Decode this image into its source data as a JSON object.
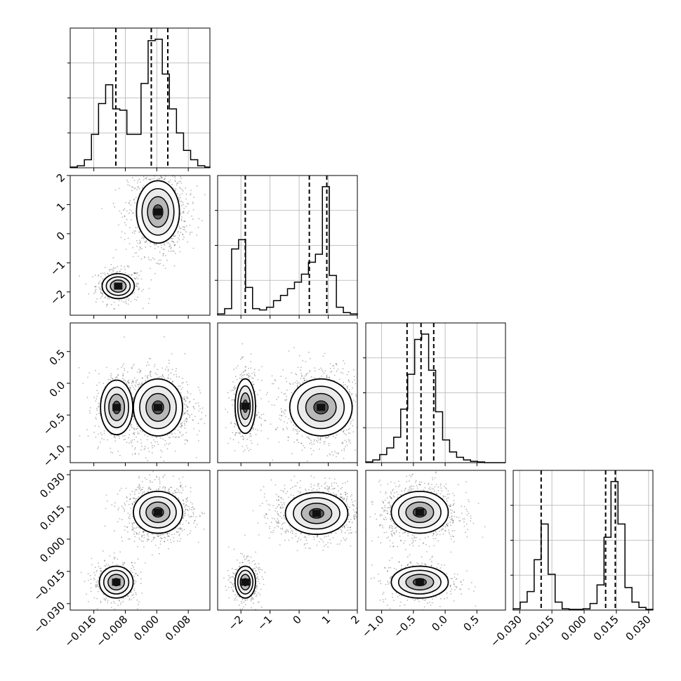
{
  "chart_data": {
    "type": "corner",
    "params": [
      {
        "range": [
          -0.022,
          0.0135
        ],
        "ticks": [
          -0.016,
          -0.008,
          0.0,
          0.008
        ],
        "tick_labels": [
          "−0.016",
          "−0.008",
          "0.000",
          "0.008"
        ],
        "quantiles": [
          -0.0104,
          -0.0014,
          0.0028
        ]
      },
      {
        "range": [
          -2.8,
          2.0
        ],
        "ticks": [
          -2,
          -1,
          0,
          1,
          2
        ],
        "tick_labels": [
          "−2",
          "−1",
          "0",
          "1",
          "2"
        ],
        "quantiles": [
          -1.85,
          0.35,
          0.95
        ]
      },
      {
        "range": [
          -1.25,
          0.95
        ],
        "ticks": [
          -1.0,
          -0.5,
          0.0,
          0.5
        ],
        "tick_labels": [
          "−1.0",
          "−0.5",
          "0.0",
          "0.5"
        ],
        "quantiles": [
          -0.6,
          -0.38,
          -0.18
        ]
      },
      {
        "range": [
          -0.033,
          0.032
        ],
        "ticks": [
          -0.03,
          -0.015,
          0.0,
          0.015,
          0.03
        ],
        "tick_labels": [
          "−0.030",
          "−0.015",
          "0.000",
          "0.015",
          "0.030"
        ],
        "quantiles": [
          -0.02,
          0.01,
          0.0145
        ]
      }
    ],
    "diagonal_histograms": [
      {
        "bin_edges": [
          -0.022,
          -0.0202,
          -0.0184,
          -0.0166,
          -0.0148,
          -0.013,
          -0.0112,
          -0.0094,
          -0.0076,
          -0.0058,
          -0.004,
          -0.0022,
          -0.0004,
          0.0014,
          0.0032,
          0.005,
          0.0068,
          0.0086,
          0.0104,
          0.0122,
          0.0135
        ],
        "counts": [
          0.5,
          1.5,
          6,
          25,
          48,
          62,
          44,
          43,
          25,
          25,
          63,
          95,
          96,
          70,
          44,
          26,
          13,
          6,
          1.5,
          0.5
        ]
      },
      {
        "bin_edges": [
          -2.8,
          -2.56,
          -2.32,
          -2.08,
          -1.84,
          -1.6,
          -1.36,
          -1.12,
          -0.88,
          -0.64,
          -0.4,
          -0.16,
          0.08,
          0.32,
          0.56,
          0.8,
          1.04,
          1.28,
          1.52,
          1.76,
          2.0
        ],
        "counts": [
          1,
          5,
          50,
          57,
          21,
          5,
          4,
          6,
          11,
          15,
          20,
          25,
          31,
          40,
          46,
          97,
          30,
          6,
          2,
          1
        ]
      },
      {
        "bin_edges": [
          -1.25,
          -1.14,
          -1.03,
          -0.92,
          -0.81,
          -0.7,
          -0.59,
          -0.48,
          -0.37,
          -0.26,
          -0.15,
          -0.04,
          0.07,
          0.18,
          0.29,
          0.4,
          0.51,
          0.62,
          0.73,
          0.84,
          0.95
        ],
        "counts": [
          0.5,
          2,
          6,
          11,
          19,
          40,
          66,
          92,
          96,
          69,
          38,
          17,
          8,
          4,
          2,
          1,
          0.5,
          0,
          0,
          0
        ]
      },
      {
        "bin_edges": [
          -0.033,
          -0.02975,
          -0.0265,
          -0.02325,
          -0.02,
          -0.01675,
          -0.0135,
          -0.01025,
          -0.007,
          -0.00375,
          -0.0005,
          0.00275,
          0.006,
          0.00925,
          0.0125,
          0.01575,
          0.019,
          0.02225,
          0.0255,
          0.02875,
          0.032
        ],
        "counts": [
          1,
          6,
          14,
          38,
          65,
          27,
          6,
          1,
          0.5,
          0.5,
          1,
          5,
          19,
          55,
          97,
          65,
          17,
          6,
          2,
          0.5
        ]
      }
    ],
    "pair_modes": {
      "1_0": [
        {
          "center": [
            -0.0098,
            -1.8
          ],
          "sd": [
            0.0021,
            0.22
          ],
          "w": 0.3
        },
        {
          "center": [
            0.0003,
            0.75
          ],
          "sd": [
            0.0028,
            0.55
          ],
          "w": 0.7
        }
      ],
      "2_0": [
        {
          "center": [
            -0.0102,
            -0.38
          ],
          "sd": [
            0.0021,
            0.22
          ],
          "w": 0.3
        },
        {
          "center": [
            0.0003,
            -0.38
          ],
          "sd": [
            0.0032,
            0.23
          ],
          "w": 0.7
        }
      ],
      "2_1": [
        {
          "center": [
            -1.85,
            -0.36
          ],
          "sd": [
            0.18,
            0.22
          ],
          "w": 0.3
        },
        {
          "center": [
            0.75,
            -0.38
          ],
          "sd": [
            0.55,
            0.23
          ],
          "w": 0.7
        }
      ],
      "3_0": [
        {
          "center": [
            -0.0103,
            -0.02
          ],
          "sd": [
            0.0022,
            0.0038
          ],
          "w": 0.3
        },
        {
          "center": [
            0.0003,
            0.0125
          ],
          "sd": [
            0.0032,
            0.005
          ],
          "w": 0.7
        }
      ],
      "3_1": [
        {
          "center": [
            -1.85,
            -0.02
          ],
          "sd": [
            0.18,
            0.0038
          ],
          "w": 0.3
        },
        {
          "center": [
            0.6,
            0.012
          ],
          "sd": [
            0.55,
            0.005
          ],
          "w": 0.7
        }
      ],
      "3_2": [
        {
          "center": [
            -0.4,
            -0.02
          ],
          "sd": [
            0.23,
            0.0038
          ],
          "w": 0.3
        },
        {
          "center": [
            -0.4,
            0.0125
          ],
          "sd": [
            0.23,
            0.005
          ],
          "w": 0.7
        }
      ]
    },
    "title": "",
    "xlabel": "",
    "ylabel": "",
    "grid": true
  }
}
